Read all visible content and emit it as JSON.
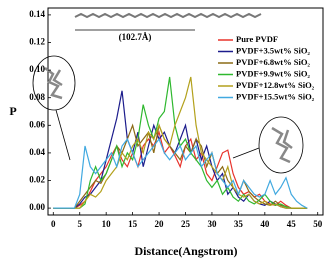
{
  "chart_data": {
    "type": "line",
    "x_label": "Distance(Angstrom)",
    "y_label": "P",
    "annotation": "(102.7Å)",
    "x": [
      0,
      1,
      2,
      3,
      4,
      5,
      6,
      7,
      8,
      9,
      10,
      11,
      12,
      13,
      14,
      15,
      16,
      17,
      18,
      19,
      20,
      21,
      22,
      23,
      24,
      25,
      26,
      27,
      28,
      29,
      30,
      31,
      32,
      33,
      34,
      35,
      36,
      37,
      38,
      39,
      40,
      41,
      42,
      43,
      44,
      45,
      46,
      47,
      48
    ],
    "series": [
      {
        "name": "Pure PVDF",
        "color": "#e8322b",
        "values": [
          0,
          0,
          0,
          0,
          0,
          0.002,
          0.005,
          0.012,
          0.02,
          0.025,
          0.03,
          0.038,
          0.045,
          0.035,
          0.03,
          0.04,
          0.03,
          0.045,
          0.05,
          0.045,
          0.055,
          0.04,
          0.045,
          0.038,
          0.03,
          0.045,
          0.05,
          0.035,
          0.04,
          0.025,
          0.02,
          0.03,
          0.04,
          0.042,
          0.025,
          0.015,
          0.01,
          0.012,
          0.008,
          0.01,
          0.005,
          0.003,
          0.002,
          0.005,
          0.002,
          0,
          0,
          0,
          0
        ]
      },
      {
        "name": "PVDF+3.5wt% SiO₂",
        "color": "#1c1c8c",
        "values": [
          0,
          0,
          0,
          0,
          0,
          0.003,
          0.008,
          0.01,
          0.015,
          0.02,
          0.035,
          0.05,
          0.065,
          0.085,
          0.05,
          0.04,
          0.055,
          0.03,
          0.045,
          0.06,
          0.05,
          0.055,
          0.045,
          0.04,
          0.05,
          0.06,
          0.04,
          0.05,
          0.035,
          0.045,
          0.03,
          0.02,
          0.025,
          0.01,
          0.015,
          0.008,
          0.005,
          0.01,
          0.005,
          0.003,
          0.002,
          0.005,
          0.003,
          0.001,
          0,
          0,
          0,
          0,
          0
        ]
      },
      {
        "name": "PVDF+6.8wt% SiO₂",
        "color": "#8b6a16",
        "values": [
          0,
          0,
          0,
          0,
          0,
          0.005,
          0.01,
          0.015,
          0.02,
          0.018,
          0.025,
          0.035,
          0.045,
          0.04,
          0.05,
          0.06,
          0.045,
          0.05,
          0.055,
          0.04,
          0.06,
          0.05,
          0.045,
          0.04,
          0.035,
          0.045,
          0.04,
          0.05,
          0.045,
          0.03,
          0.04,
          0.025,
          0.03,
          0.02,
          0.015,
          0.01,
          0.02,
          0.012,
          0.008,
          0.005,
          0.003,
          0.002,
          0.005,
          0.002,
          0.001,
          0,
          0,
          0,
          0
        ]
      },
      {
        "name": "PVDF+9.9wt% SiO₂",
        "color": "#2fb82f",
        "values": [
          0,
          0,
          0,
          0,
          0,
          0,
          0.003,
          0.02,
          0.03,
          0.02,
          0.025,
          0.035,
          0.045,
          0.03,
          0.04,
          0.035,
          0.05,
          0.075,
          0.06,
          0.05,
          0.065,
          0.07,
          0.095,
          0.06,
          0.045,
          0.05,
          0.04,
          0.035,
          0.03,
          0.02,
          0.015,
          0.02,
          0.01,
          0.015,
          0.008,
          0.005,
          0.01,
          0.005,
          0.003,
          0.006,
          0.01,
          0.005,
          0.002,
          0.003,
          0.001,
          0,
          0,
          0,
          0
        ]
      },
      {
        "name": "PVDF+12.8wt% SiO₂",
        "color": "#b3a11c",
        "values": [
          0,
          0,
          0,
          0,
          0,
          0,
          0.005,
          0.01,
          0.008,
          0.012,
          0.02,
          0.025,
          0.03,
          0.04,
          0.035,
          0.045,
          0.05,
          0.04,
          0.055,
          0.05,
          0.06,
          0.05,
          0.045,
          0.06,
          0.07,
          0.08,
          0.095,
          0.06,
          0.04,
          0.035,
          0.03,
          0.025,
          0.02,
          0.03,
          0.015,
          0.01,
          0.008,
          0.01,
          0.005,
          0.003,
          0.005,
          0.002,
          0.003,
          0.001,
          0,
          0,
          0,
          0,
          0
        ]
      },
      {
        "name": "PVDF+15.5wt% SiO₂",
        "color": "#41a9e0",
        "values": [
          0,
          0,
          0,
          0,
          0,
          0.01,
          0.045,
          0.03,
          0.025,
          0.03,
          0.035,
          0.04,
          0.03,
          0.045,
          0.05,
          0.04,
          0.03,
          0.035,
          0.04,
          0.045,
          0.05,
          0.04,
          0.035,
          0.04,
          0.045,
          0.035,
          0.04,
          0.045,
          0.03,
          0.035,
          0.04,
          0.025,
          0.02,
          0.015,
          0.02,
          0.01,
          0.02,
          0.015,
          0.01,
          0.008,
          0.01,
          0.02,
          0.01,
          0.015,
          0.022,
          0.01,
          0.005,
          0.002,
          0
        ]
      }
    ],
    "xlim": [
      -1,
      51
    ],
    "ylim": [
      -0.005,
      0.145
    ],
    "xticks": [
      0,
      5,
      10,
      15,
      20,
      25,
      30,
      35,
      40,
      45,
      50
    ],
    "yticks": [
      {
        "value": 0,
        "label": "0.00"
      },
      0.02,
      0.04,
      0.06,
      0.08,
      {
        "value": 0.1,
        "label": "0.10"
      },
      0.12,
      0.14
    ]
  }
}
